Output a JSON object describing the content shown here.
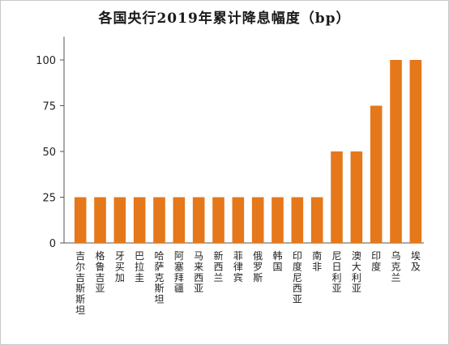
{
  "chart_data": {
    "type": "bar",
    "title": "各国央行2019年累计降息幅度（bp）",
    "categories": [
      "吉尔吉斯斯坦",
      "格鲁吉亚",
      "牙买加",
      "巴拉圭",
      "哈萨克斯坦",
      "阿塞拜疆",
      "马来西亚",
      "新西兰",
      "菲律宾",
      "俄罗斯",
      "韩国",
      "印度尼西亚",
      "南非",
      "尼日利亚",
      "澳大利亚",
      "印度",
      "乌克兰",
      "埃及"
    ],
    "values": [
      25,
      25,
      25,
      25,
      25,
      25,
      25,
      25,
      25,
      25,
      25,
      25,
      25,
      50,
      50,
      75,
      100,
      100
    ],
    "ylim": [
      0,
      110
    ],
    "yticks": [
      0,
      25,
      50,
      75,
      100
    ],
    "xlabel": "",
    "ylabel": "",
    "grid": false,
    "legend": "none",
    "bar_color": "#e5781a"
  }
}
